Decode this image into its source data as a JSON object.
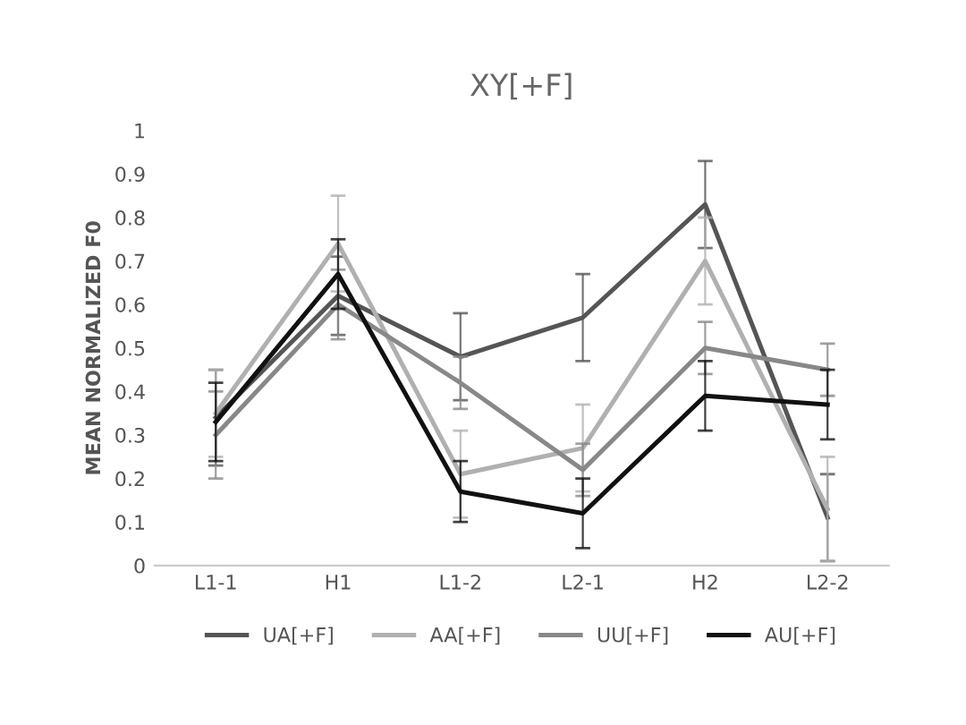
{
  "chart_data": {
    "type": "line",
    "title": "XY[+F]",
    "ylabel": "MEAN NORMALIZED F0",
    "categories": [
      "L1-1",
      "H1",
      "L1-2",
      "L2-1",
      "H2",
      "L2-2"
    ],
    "ylim": [
      0,
      1
    ],
    "yticks": [
      0,
      0.1,
      0.2,
      0.3,
      0.4,
      0.5,
      0.6,
      0.7,
      0.8,
      0.9,
      1
    ],
    "grid": false,
    "legend": "bottom",
    "marker": "none",
    "line_style": "solid",
    "series": [
      {
        "name": "UA[+F]",
        "color": "#555555",
        "values": [
          0.34,
          0.62,
          0.48,
          0.57,
          0.83,
          0.11
        ],
        "errors": [
          0.11,
          0.09,
          0.1,
          0.1,
          0.1,
          0.1
        ]
      },
      {
        "name": "AA[+F]",
        "color": "#b0b0b0",
        "values": [
          0.35,
          0.74,
          0.21,
          0.27,
          0.7,
          0.13
        ],
        "errors": [
          0.1,
          0.11,
          0.1,
          0.1,
          0.1,
          0.12
        ]
      },
      {
        "name": "UU[+F]",
        "color": "#888888",
        "values": [
          0.3,
          0.6,
          0.42,
          0.22,
          0.5,
          0.45
        ],
        "errors": [
          0.1,
          0.08,
          0.06,
          0.06,
          0.06,
          0.06
        ]
      },
      {
        "name": "AU[+F]",
        "color": "#111111",
        "values": [
          0.33,
          0.67,
          0.17,
          0.12,
          0.39,
          0.37
        ],
        "errors": [
          0.09,
          0.08,
          0.07,
          0.08,
          0.08,
          0.08
        ]
      }
    ]
  }
}
